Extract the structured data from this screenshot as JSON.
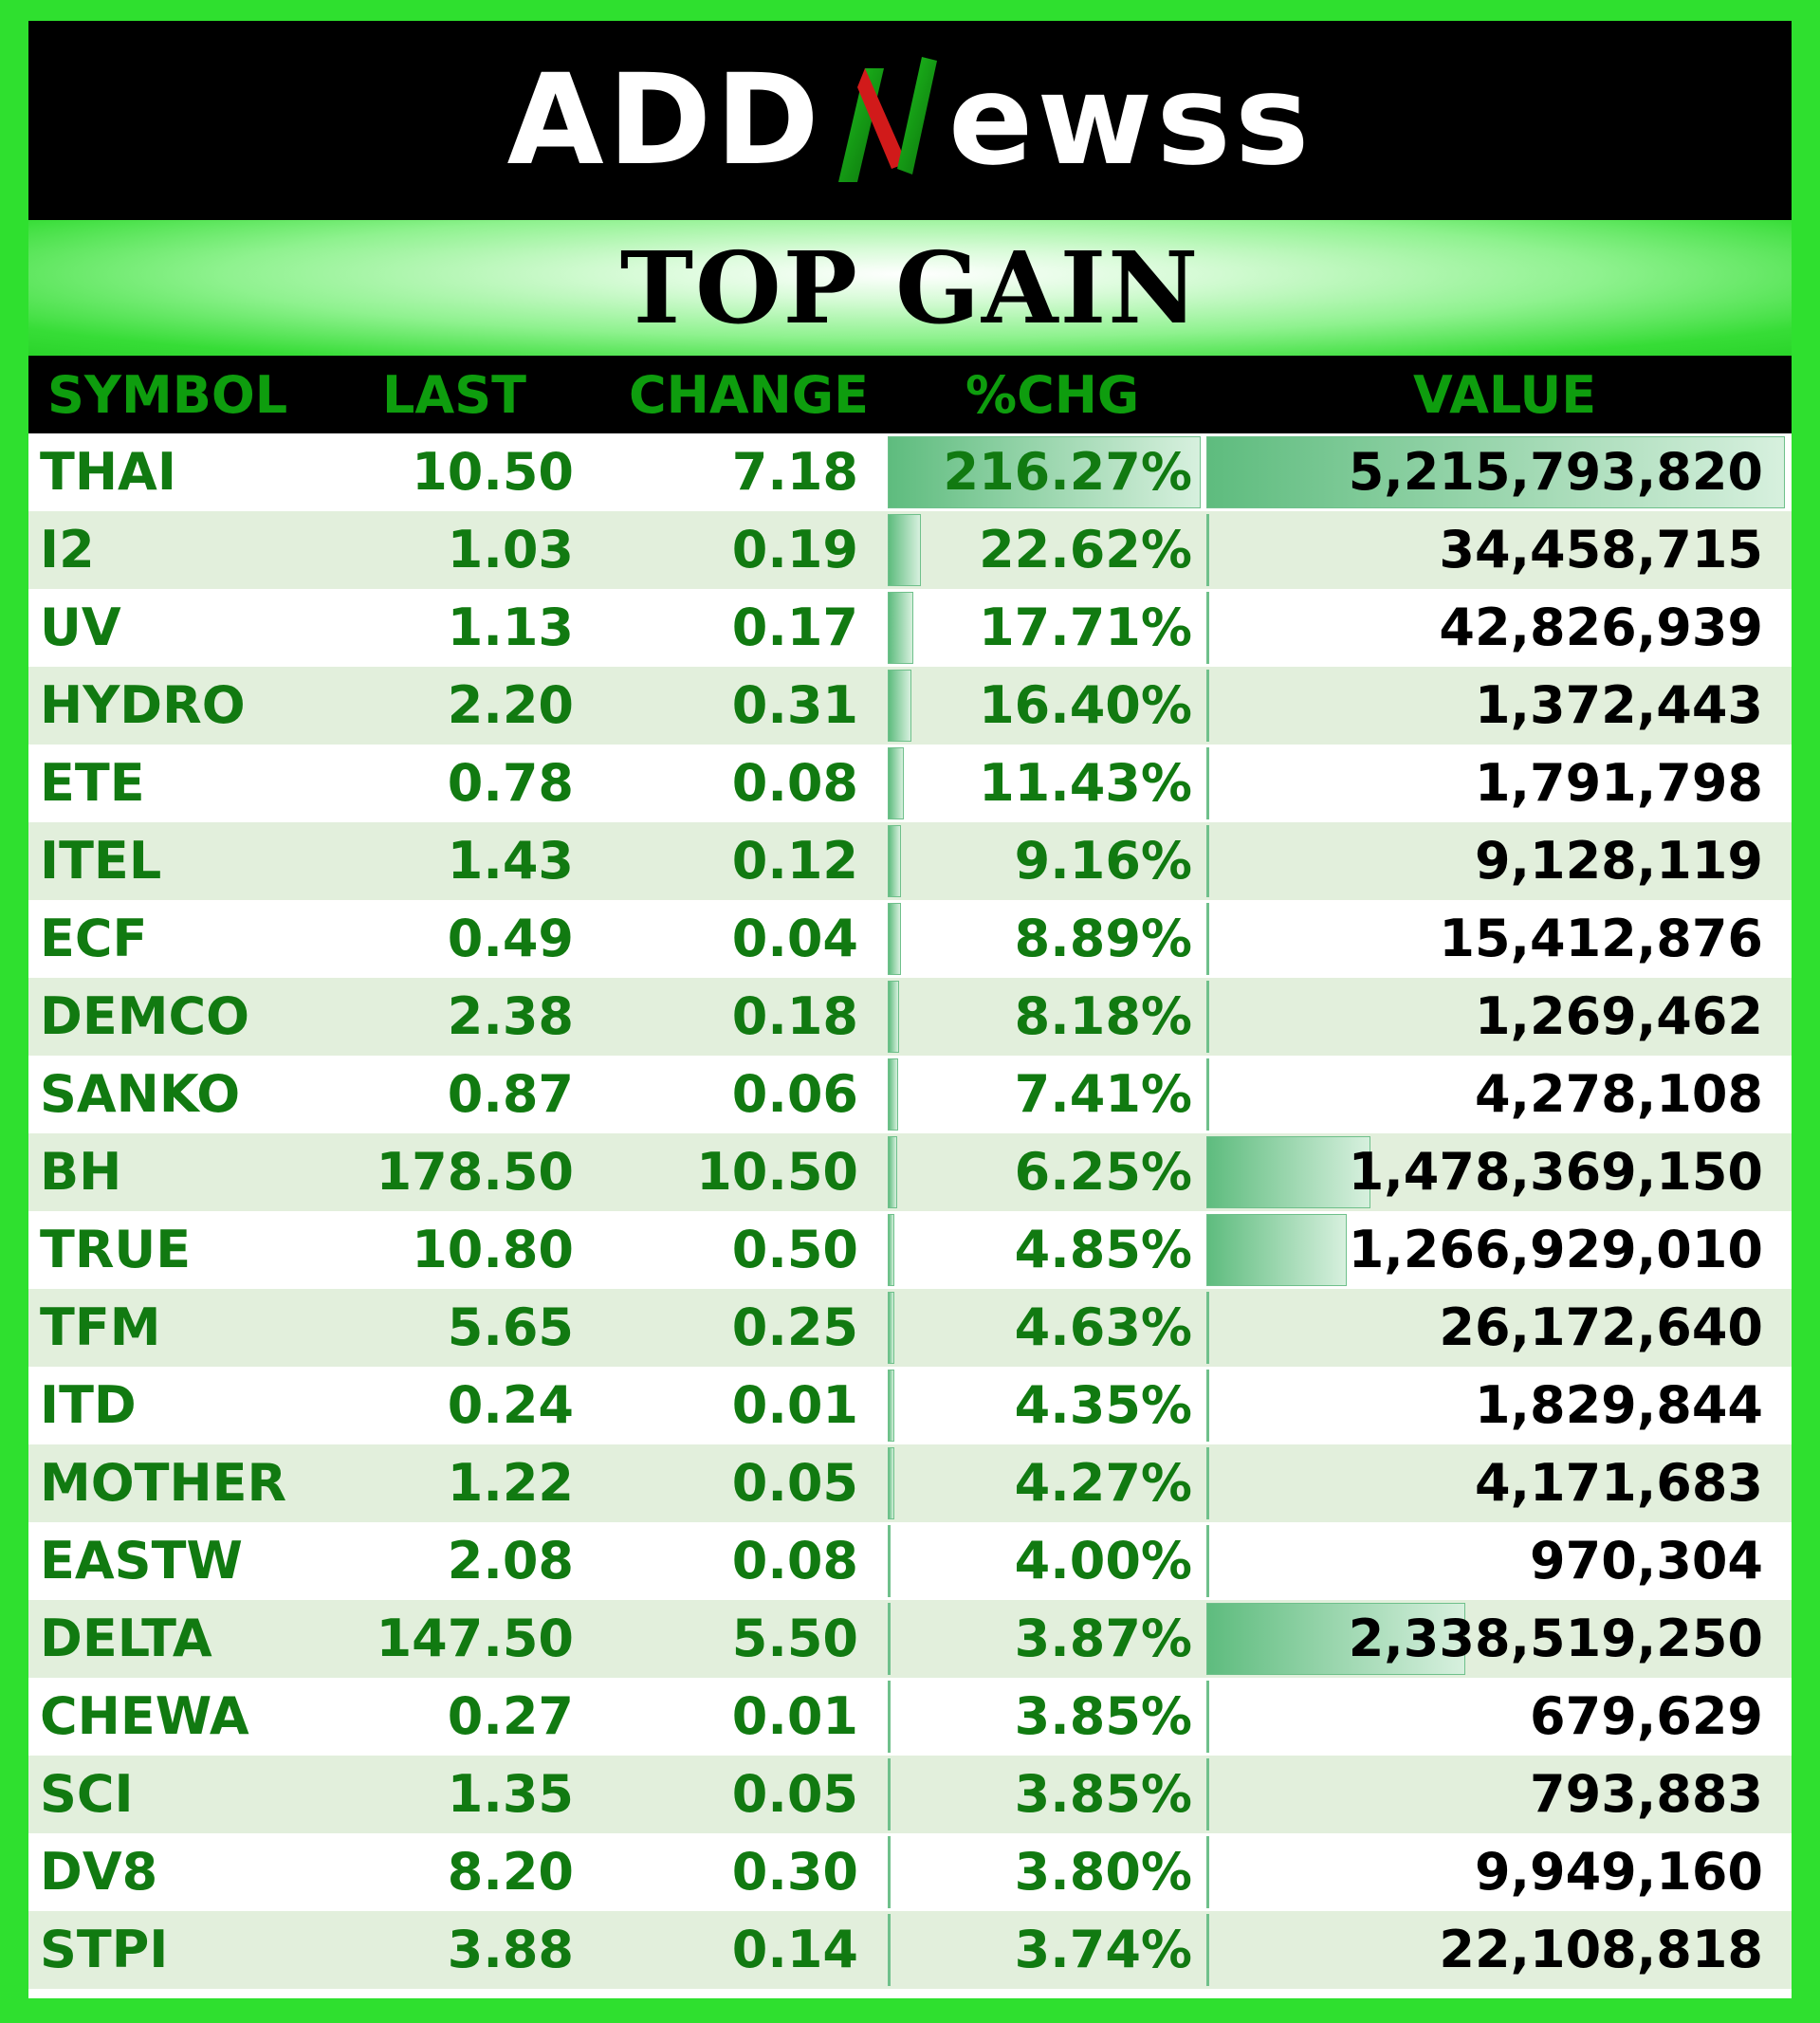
{
  "brand": {
    "logo_left": "ADD",
    "logo_right": "ewss",
    "colors": {
      "frame": "#2fe02f",
      "header": "#000000",
      "gain_text": "#117a11",
      "bar": "#5ebc7e"
    }
  },
  "title": "TOP GAIN",
  "columns": {
    "symbol": "SYMBOL",
    "last": "LAST",
    "change": "CHANGE",
    "pct": "%CHG",
    "value": "VALUE"
  },
  "rows": [
    {
      "symbol": "THAI",
      "last": "10.50",
      "change": "7.18",
      "pct": "216.27%",
      "value": "5,215,793,820"
    },
    {
      "symbol": "I2",
      "last": "1.03",
      "change": "0.19",
      "pct": "22.62%",
      "value": "34,458,715"
    },
    {
      "symbol": "UV",
      "last": "1.13",
      "change": "0.17",
      "pct": "17.71%",
      "value": "42,826,939"
    },
    {
      "symbol": "HYDRO",
      "last": "2.20",
      "change": "0.31",
      "pct": "16.40%",
      "value": "1,372,443"
    },
    {
      "symbol": "ETE",
      "last": "0.78",
      "change": "0.08",
      "pct": "11.43%",
      "value": "1,791,798"
    },
    {
      "symbol": "ITEL",
      "last": "1.43",
      "change": "0.12",
      "pct": "9.16%",
      "value": "9,128,119"
    },
    {
      "symbol": "ECF",
      "last": "0.49",
      "change": "0.04",
      "pct": "8.89%",
      "value": "15,412,876"
    },
    {
      "symbol": "DEMCO",
      "last": "2.38",
      "change": "0.18",
      "pct": "8.18%",
      "value": "1,269,462"
    },
    {
      "symbol": "SANKO",
      "last": "0.87",
      "change": "0.06",
      "pct": "7.41%",
      "value": "4,278,108"
    },
    {
      "symbol": "BH",
      "last": "178.50",
      "change": "10.50",
      "pct": "6.25%",
      "value": "1,478,369,150"
    },
    {
      "symbol": "TRUE",
      "last": "10.80",
      "change": "0.50",
      "pct": "4.85%",
      "value": "1,266,929,010"
    },
    {
      "symbol": "TFM",
      "last": "5.65",
      "change": "0.25",
      "pct": "4.63%",
      "value": "26,172,640"
    },
    {
      "symbol": "ITD",
      "last": "0.24",
      "change": "0.01",
      "pct": "4.35%",
      "value": "1,829,844"
    },
    {
      "symbol": "MOTHER",
      "last": "1.22",
      "change": "0.05",
      "pct": "4.27%",
      "value": "4,171,683"
    },
    {
      "symbol": "EASTW",
      "last": "2.08",
      "change": "0.08",
      "pct": "4.00%",
      "value": "970,304"
    },
    {
      "symbol": "DELTA",
      "last": "147.50",
      "change": "5.50",
      "pct": "3.87%",
      "value": "2,338,519,250"
    },
    {
      "symbol": "CHEWA",
      "last": "0.27",
      "change": "0.01",
      "pct": "3.85%",
      "value": "679,629"
    },
    {
      "symbol": "SCI",
      "last": "1.35",
      "change": "0.05",
      "pct": "3.85%",
      "value": "793,883"
    },
    {
      "symbol": "DV8",
      "last": "8.20",
      "change": "0.30",
      "pct": "3.80%",
      "value": "9,949,160"
    },
    {
      "symbol": "STPI",
      "last": "3.88",
      "change": "0.14",
      "pct": "3.74%",
      "value": "22,108,818"
    }
  ]
}
